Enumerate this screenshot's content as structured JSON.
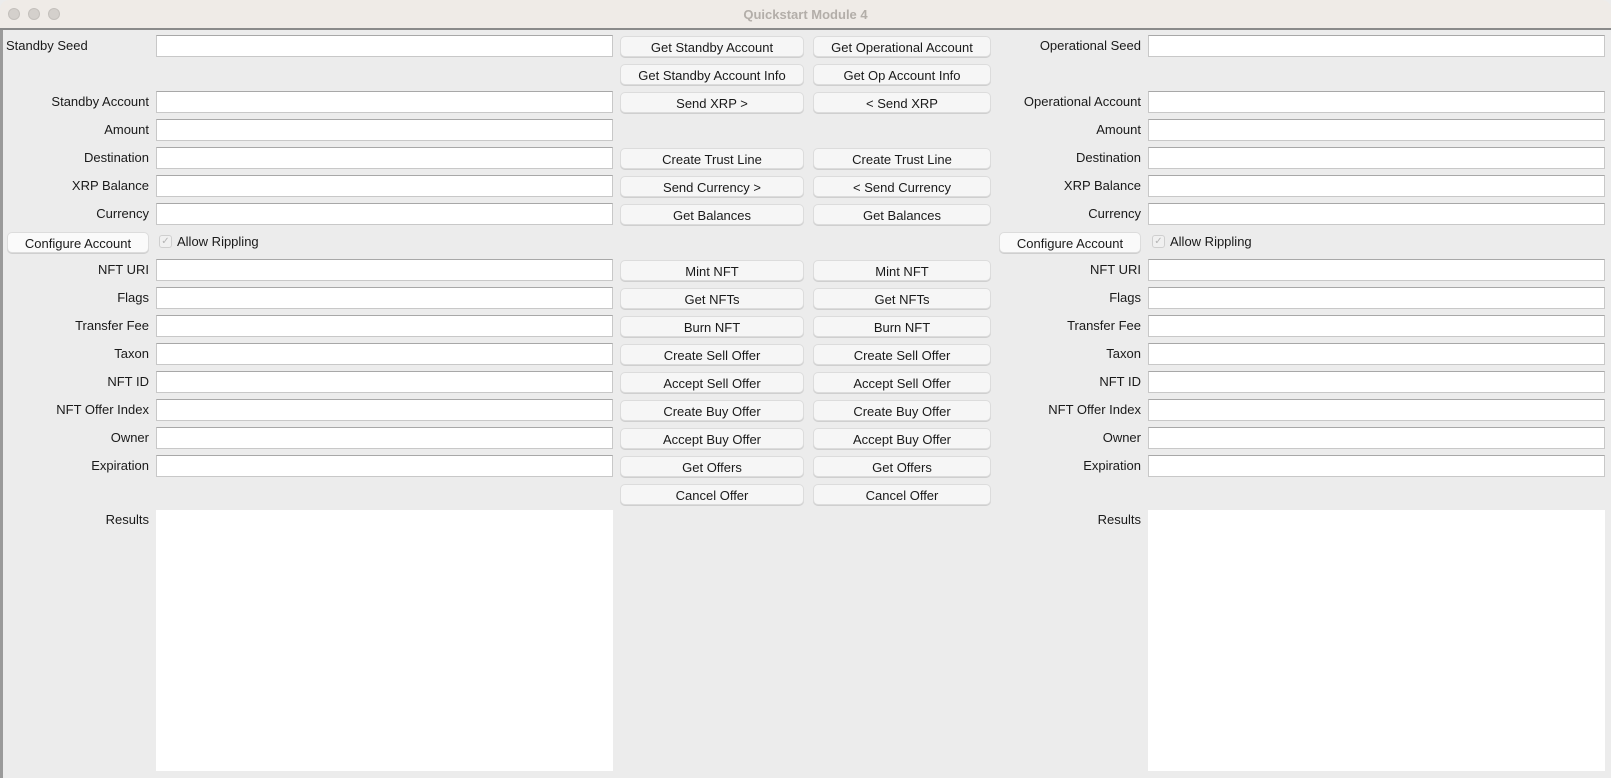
{
  "window": {
    "title": "Quickstart Module 4"
  },
  "standby": {
    "seed_label": "Standby Seed",
    "fields": [
      "Standby Account",
      "Amount",
      "Destination",
      "XRP Balance",
      "Currency"
    ],
    "configure_label": "Configure Account",
    "allow_rippling_label": "Allow Rippling",
    "allow_rippling_checked": true,
    "nft_fields": [
      "NFT URI",
      "Flags",
      "Transfer Fee",
      "Taxon",
      "NFT ID",
      "NFT Offer Index",
      "Owner",
      "Expiration"
    ],
    "results_label": "Results"
  },
  "operational": {
    "seed_label": "Operational Seed",
    "fields": [
      "Operational Account",
      "Amount",
      "Destination",
      "XRP Balance",
      "Currency"
    ],
    "configure_label": "Configure Account",
    "allow_rippling_label": "Allow Rippling",
    "allow_rippling_checked": true,
    "nft_fields": [
      "NFT URI",
      "Flags",
      "Transfer Fee",
      "Taxon",
      "NFT ID",
      "NFT Offer Index",
      "Owner",
      "Expiration"
    ],
    "results_label": "Results"
  },
  "buttons": {
    "standby": [
      "Get Standby Account",
      "Get Standby Account Info",
      "Send XRP >",
      "",
      "Create Trust Line",
      "Send Currency >",
      "Get Balances",
      "",
      "Mint NFT",
      "Get NFTs",
      "Burn NFT",
      "Create Sell Offer",
      "Accept Sell Offer",
      "Create Buy Offer",
      "Accept Buy Offer",
      "Get Offers",
      "Cancel Offer"
    ],
    "operational": [
      "Get Operational Account",
      "Get Op Account Info",
      "< Send XRP",
      "",
      "Create Trust Line",
      "< Send Currency",
      "Get Balances",
      "",
      "Mint NFT",
      "Get NFTs",
      "Burn NFT",
      "Create Sell Offer",
      "Accept Sell Offer",
      "Create Buy Offer",
      "Accept Buy Offer",
      "Get Offers",
      "Cancel Offer"
    ]
  }
}
